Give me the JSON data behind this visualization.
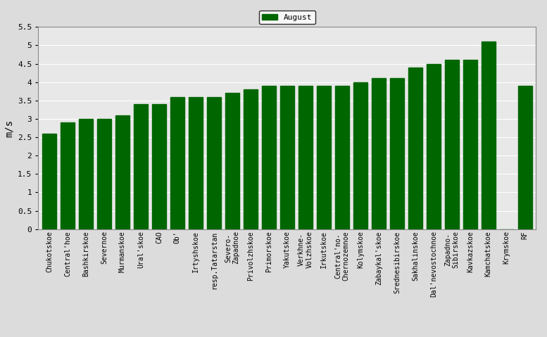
{
  "categories": [
    "Chukotskoe",
    "Central'hoe",
    "Bashkirskoe",
    "Severnoe",
    "Murmanskoe",
    "Ural'skoe",
    "CAO",
    "Ob'",
    "Irtyshskoe",
    "resp.Tatarstan",
    "Severo-\nZapadnoe",
    "Privolzhskoe",
    "Primorskoe",
    "Yakutskoe",
    "Verkhne-\nVolzhskoe",
    "Irkutskoe",
    "Central'no-\nChernozemnoe",
    "Kolymskoe",
    "Zabaykal'skoe",
    "Srednesibirskoe",
    "Sakhalinskoe",
    "Dal'nevostochnoe",
    "Zapadno-\nSibirskoe",
    "Kavkazskoe",
    "Kamchatskoe",
    "Krymskoe",
    "RF"
  ],
  "values": [
    2.6,
    2.9,
    3.0,
    3.0,
    3.1,
    3.4,
    3.4,
    3.6,
    3.6,
    3.6,
    3.7,
    3.8,
    3.9,
    3.9,
    3.9,
    3.9,
    3.9,
    4.0,
    4.1,
    4.1,
    4.4,
    4.5,
    4.6,
    4.6,
    5.1,
    0.0,
    3.9
  ],
  "bar_color": "#006600",
  "ylabel": "m/s",
  "ylim": [
    0,
    5.5
  ],
  "yticks": [
    0,
    0.5,
    1.0,
    1.5,
    2.0,
    2.5,
    3.0,
    3.5,
    4.0,
    4.5,
    5.0,
    5.5
  ],
  "legend_label": "August",
  "legend_color": "#006600",
  "bg_color": "#dcdcdc",
  "plot_bg": "#e8e8e8",
  "figsize": [
    7.77,
    4.79
  ],
  "dpi": 100
}
